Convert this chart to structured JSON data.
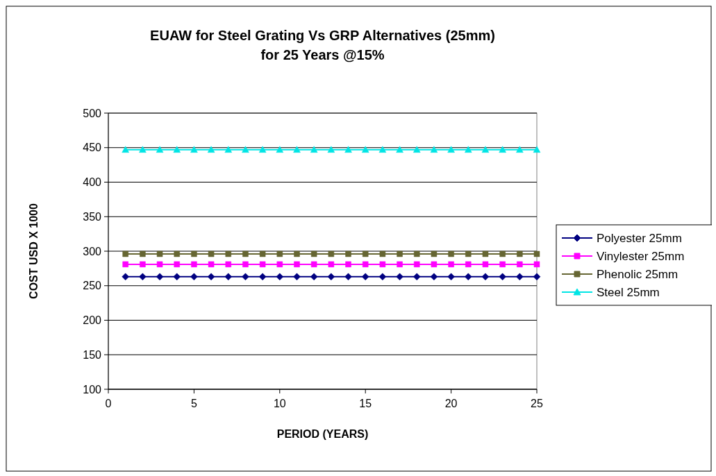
{
  "chart_data": {
    "type": "line",
    "title": "EUAW for Steel Grating Vs GRP Alternatives (25mm)\nfor 25 Years @15%",
    "xlabel": "PERIOD (YEARS)",
    "ylabel": "COST USD X 1000",
    "x": [
      1,
      2,
      3,
      4,
      5,
      6,
      7,
      8,
      9,
      10,
      11,
      12,
      13,
      14,
      15,
      16,
      17,
      18,
      19,
      20,
      21,
      22,
      23,
      24,
      25
    ],
    "xlim": [
      0,
      25
    ],
    "xticks": [
      0,
      5,
      10,
      15,
      20,
      25
    ],
    "ylim": [
      100,
      500
    ],
    "yticks": [
      100,
      150,
      200,
      250,
      300,
      350,
      400,
      450,
      500
    ],
    "grid": "y",
    "legend": "right",
    "series": [
      {
        "name": "Polyester 25mm",
        "color": "#000080",
        "marker": "diamond",
        "values": [
          263,
          263,
          263,
          263,
          263,
          263,
          263,
          263,
          263,
          263,
          263,
          263,
          263,
          263,
          263,
          263,
          263,
          263,
          263,
          263,
          263,
          263,
          263,
          263,
          263
        ]
      },
      {
        "name": "Vinylester 25mm",
        "color": "#ff00ff",
        "marker": "square",
        "values": [
          281,
          281,
          281,
          281,
          281,
          281,
          281,
          281,
          281,
          281,
          281,
          281,
          281,
          281,
          281,
          281,
          281,
          281,
          281,
          281,
          281,
          281,
          281,
          281,
          281
        ]
      },
      {
        "name": "Phenolic 25mm",
        "color": "#666633",
        "marker": "square",
        "values": [
          296,
          296,
          296,
          296,
          296,
          296,
          296,
          296,
          296,
          296,
          296,
          296,
          296,
          296,
          296,
          296,
          296,
          296,
          296,
          296,
          296,
          296,
          296,
          296,
          296
        ]
      },
      {
        "name": "Steel 25mm",
        "color": "#00e5e5",
        "marker": "triangle",
        "values": [
          447,
          447,
          447,
          447,
          447,
          447,
          447,
          447,
          447,
          447,
          447,
          447,
          447,
          447,
          447,
          447,
          447,
          447,
          447,
          447,
          447,
          447,
          447,
          447,
          447
        ]
      }
    ]
  }
}
